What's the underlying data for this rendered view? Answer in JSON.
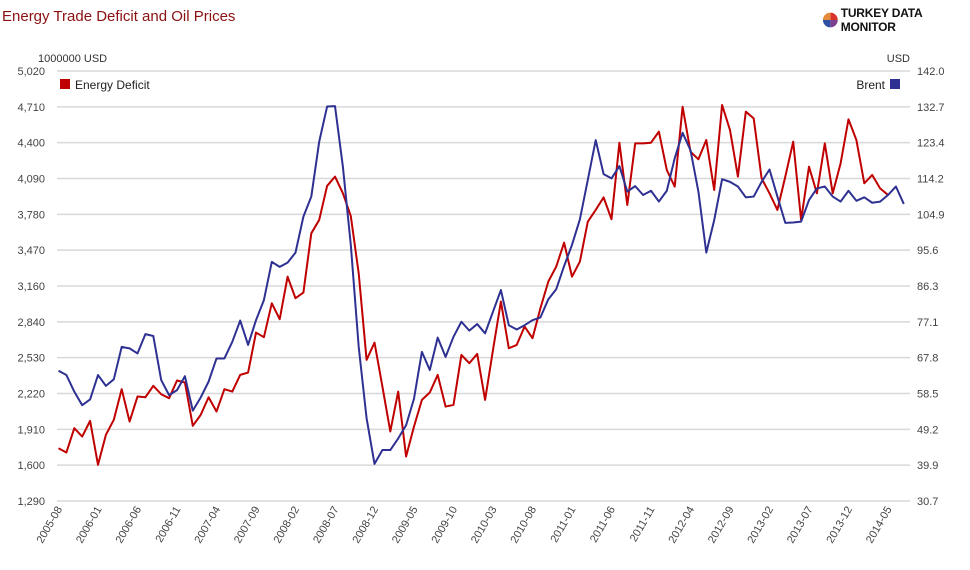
{
  "header": {
    "title": "Energy Trade Deficit and Oil Prices",
    "logo_text": "TURKEY DATA MONITOR"
  },
  "chart_data": {
    "type": "line",
    "title": "Energy Trade Deficit and Oil Prices",
    "x_start": "2005-08",
    "x_step": "month",
    "xtick_labels": [
      "2005-08",
      "2006-01",
      "2006-06",
      "2006-11",
      "2007-04",
      "2007-09",
      "2008-02",
      "2008-07",
      "2008-12",
      "2009-05",
      "2009-10",
      "2010-03",
      "2010-08",
      "2011-01",
      "2011-06",
      "2011-11",
      "2012-04",
      "2012-09",
      "2013-02",
      "2013-07",
      "2013-12",
      "2014-05"
    ],
    "left_axis": {
      "label": "1000000 USD",
      "range": [
        1290,
        5020
      ],
      "ticks": [
        "5,020",
        "4,710",
        "4,400",
        "4,090",
        "3,780",
        "3,470",
        "3,160",
        "2,840",
        "2,530",
        "2,220",
        "1,910",
        "1,600",
        "1,290"
      ]
    },
    "right_axis": {
      "label": "USD",
      "range": [
        30.7,
        142.0
      ],
      "ticks": [
        "142.0",
        "132.7",
        "123.4",
        "114.2",
        "104.9",
        "95.6",
        "86.3",
        "77.1",
        "67.8",
        "58.5",
        "49.2",
        "39.9",
        "30.7"
      ]
    },
    "grid": true,
    "series": [
      {
        "name": "Energy Deficit",
        "axis": "left",
        "color": "#c00000",
        "legend": "top-left",
        "values": [
          1748,
          1711,
          1922,
          1849,
          1985,
          1604,
          1864,
          1994,
          2260,
          1979,
          2196,
          2190,
          2289,
          2216,
          2182,
          2335,
          2318,
          1942,
          2037,
          2190,
          2066,
          2260,
          2239,
          2384,
          2404,
          2751,
          2711,
          3005,
          2867,
          3236,
          3049,
          3098,
          3612,
          3728,
          4023,
          4104,
          3959,
          3762,
          3265,
          2514,
          2664,
          2283,
          1893,
          2239,
          1676,
          1936,
          2167,
          2231,
          2384,
          2109,
          2124,
          2557,
          2485,
          2566,
          2167,
          2601,
          3020,
          2615,
          2644,
          2803,
          2702,
          2962,
          3193,
          3323,
          3531,
          3236,
          3367,
          3713,
          3815,
          3924,
          3734,
          4398,
          3858,
          4392,
          4392,
          4398,
          4494,
          4161,
          4017,
          4710,
          4320,
          4254,
          4421,
          3988,
          4725,
          4508,
          4104,
          4667,
          4609,
          4089,
          3959,
          3815,
          4104,
          4407,
          3728,
          4190,
          3959,
          4392,
          3959,
          4219,
          4601,
          4421,
          4046,
          4118,
          4002,
          3945
        ]
      },
      {
        "name": "Brent",
        "axis": "right",
        "color": "#2e3192",
        "legend": "top-right",
        "values": [
          64.4,
          63.3,
          59.0,
          55.5,
          57.0,
          63.3,
          60.5,
          62.2,
          70.6,
          70.2,
          68.9,
          73.9,
          73.4,
          62.0,
          58.1,
          59.4,
          63.0,
          54.1,
          57.5,
          61.6,
          67.6,
          67.6,
          71.9,
          77.4,
          71.1,
          77.5,
          82.7,
          92.6,
          91.3,
          92.4,
          95.0,
          104.3,
          109.5,
          123.7,
          132.8,
          132.9,
          117.2,
          97.0,
          70.6,
          52.1,
          40.3,
          43.9,
          43.9,
          46.9,
          50.3,
          57.2,
          69.3,
          64.6,
          73.0,
          68.0,
          73.2,
          77.1,
          74.8,
          76.5,
          74.1,
          79.7,
          85.3,
          76.2,
          75.1,
          76.2,
          77.5,
          78.2,
          82.9,
          85.5,
          91.5,
          97.0,
          103.6,
          113.8,
          124.1,
          115.3,
          114.2,
          117.4,
          110.8,
          112.2,
          109.9,
          111.0,
          108.2,
          111.0,
          119.4,
          126.0,
          121.5,
          110.8,
          95.0,
          103.4,
          114.0,
          113.3,
          112.1,
          109.3,
          109.5,
          113.3,
          116.5,
          109.5,
          102.7,
          102.8,
          103.0,
          108.6,
          111.6,
          112.1,
          109.5,
          108.2,
          111.0,
          108.4,
          109.3,
          107.9,
          108.2,
          109.9,
          112.1,
          107.6
        ]
      }
    ]
  }
}
